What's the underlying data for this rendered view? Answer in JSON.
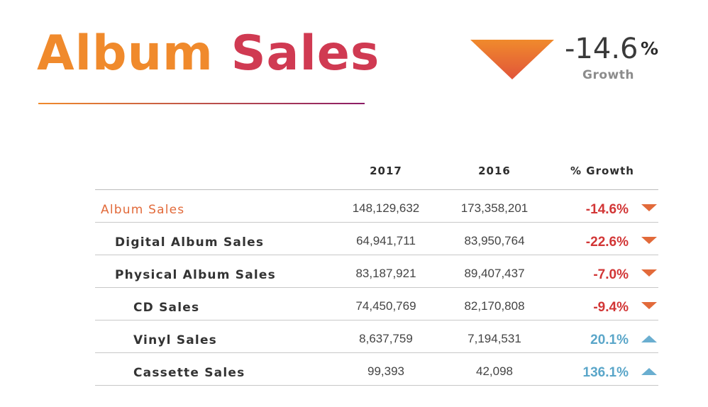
{
  "title": {
    "word1": "Album",
    "word2": "Sales"
  },
  "kpi": {
    "value": "-14.6",
    "unit": "%",
    "label": "Growth",
    "direction": "down"
  },
  "colors": {
    "orange": "#f08a2c",
    "crimson": "#d03a52",
    "negative": "#d23636",
    "positive": "#5aa6c9",
    "down_triangle": "#e26a3a",
    "up_triangle": "#6aaed0"
  },
  "chart_data": {
    "type": "table",
    "columns": [
      "",
      "2017",
      "2016",
      "% Growth"
    ],
    "rows": [
      {
        "label": "Album Sales",
        "level": 0,
        "y2017": "148,129,632",
        "y2016": "173,358,201",
        "growth": "-14.6%",
        "direction": "down"
      },
      {
        "label": "Digital Album Sales",
        "level": 1,
        "y2017": "64,941,711",
        "y2016": "83,950,764",
        "growth": "-22.6%",
        "direction": "down"
      },
      {
        "label": "Physical Album Sales",
        "level": 1,
        "y2017": "83,187,921",
        "y2016": "89,407,437",
        "growth": "-7.0%",
        "direction": "down"
      },
      {
        "label": "CD Sales",
        "level": 2,
        "y2017": "74,450,769",
        "y2016": "82,170,808",
        "growth": "-9.4%",
        "direction": "down"
      },
      {
        "label": "Vinyl Sales",
        "level": 2,
        "y2017": "8,637,759",
        "y2016": "7,194,531",
        "growth": "20.1%",
        "direction": "up"
      },
      {
        "label": "Cassette Sales",
        "level": 2,
        "y2017": "99,393",
        "y2016": "42,098",
        "growth": "136.1%",
        "direction": "up"
      }
    ]
  }
}
